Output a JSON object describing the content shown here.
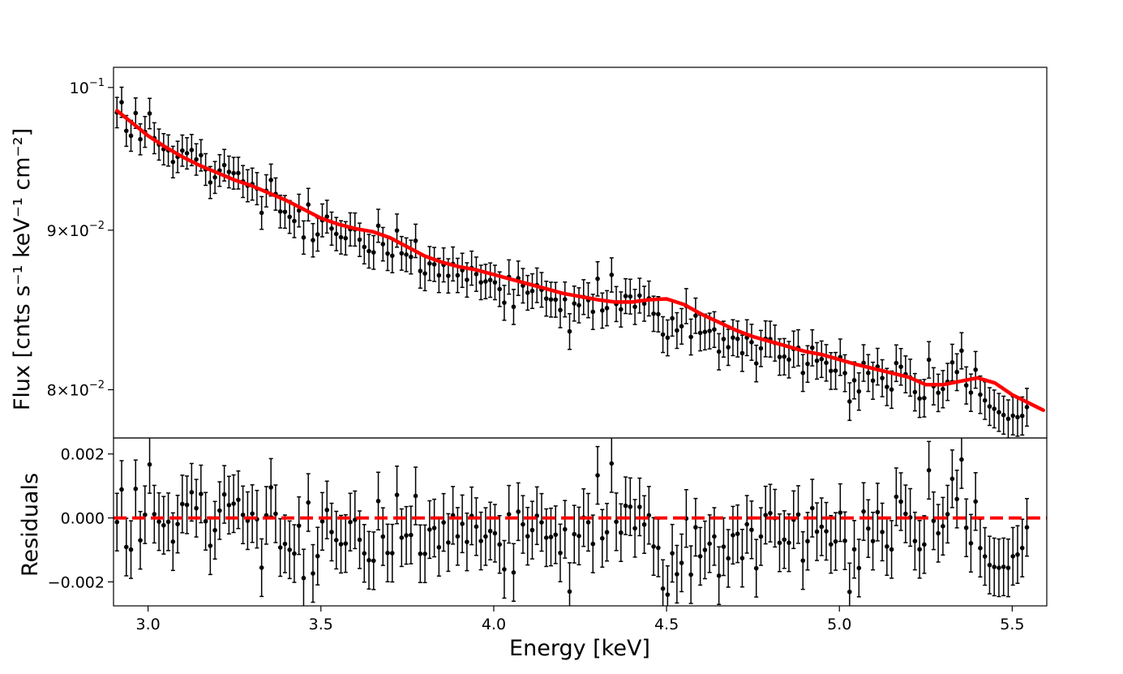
{
  "chart_data": {
    "type": "scatter",
    "panels": [
      {
        "name": "spectrum",
        "ylabel": "Flux [cnts s⁻¹ keV⁻¹ cm⁻²]",
        "yscale": "log",
        "xlim": [
          2.9,
          5.6
        ],
        "ylim": [
          0.0772,
          0.1015
        ],
        "ytick_values": [
          0.1,
          0.09,
          0.08
        ],
        "ytick_mantissa": [
          "10",
          "9×10",
          "8×10"
        ],
        "ytick_exponent": [
          "−1",
          "−2",
          "−2"
        ],
        "series": [
          {
            "name": "data",
            "kind": "errorbar",
            "color": "#000000",
            "x_start": 2.91,
            "x_step": 0.0135,
            "y": [
              0.09817,
              0.09892,
              0.09685,
              0.0965,
              0.09813,
              0.09625,
              0.09678,
              0.0981,
              0.09633,
              0.09588,
              0.09555,
              0.09546,
              0.09465,
              0.09501,
              0.09545,
              0.09526,
              0.09549,
              0.09483,
              0.09512,
              0.09413,
              0.09323,
              0.09358,
              0.09406,
              0.09443,
              0.09396,
              0.09387,
              0.09388,
              0.0933,
              0.09301,
              0.09312,
              0.09281,
              0.09116,
              0.09266,
              0.0934,
              0.09244,
              0.09125,
              0.09123,
              0.09089,
              0.09061,
              0.09132,
              0.08952,
              0.09172,
              0.08934,
              0.08972,
              0.09066,
              0.09091,
              0.09011,
              0.08975,
              0.08953,
              0.08947,
              0.09006,
              0.09005,
              0.08937,
              0.08889,
              0.08862,
              0.08854,
              0.0903,
              0.08908,
              0.08846,
              0.08832,
              0.08998,
              0.08848,
              0.08839,
              0.08824,
              0.0893,
              0.08733,
              0.08717,
              0.08782,
              0.08776,
              0.08705,
              0.08773,
              0.08702,
              0.08779,
              0.08705,
              0.08738,
              0.08676,
              0.08752,
              0.08713,
              0.0866,
              0.08666,
              0.08675,
              0.0866,
              0.08617,
              0.08531,
              0.08695,
              0.08505,
              0.08687,
              0.08639,
              0.08594,
              0.08605,
              0.08642,
              0.08613,
              0.08557,
              0.08551,
              0.0855,
              0.08485,
              0.08552,
              0.08352,
              0.08526,
              0.08515,
              0.08567,
              0.08547,
              0.08474,
              0.08683,
              0.08482,
              0.08497,
              0.08708,
              0.08523,
              0.08489,
              0.08573,
              0.0857,
              0.08505,
              0.08576,
              0.08525,
              0.08558,
              0.08462,
              0.08459,
              0.08333,
              0.08313,
              0.08433,
              0.08358,
              0.08384,
              0.0851,
              0.08318,
              0.0845,
              0.08343,
              0.08349,
              0.08355,
              0.08364,
              0.08228,
              0.08305,
              0.08255,
              0.08314,
              0.08306,
              0.08219,
              0.08314,
              0.08286,
              0.08157,
              0.08248,
              0.08307,
              0.08305,
              0.08281,
              0.08196,
              0.08198,
              0.0818,
              0.08244,
              0.08252,
              0.081,
              0.08154,
              0.08252,
              0.08173,
              0.08183,
              0.08161,
              0.08112,
              0.08113,
              0.08195,
              0.08099,
              0.07931,
              0.08056,
              0.0799,
              0.0816,
              0.081,
              0.08054,
              0.08138,
              0.08069,
              0.08017,
              0.08001,
              0.08159,
              0.08137,
              0.08092,
              0.08072,
              0.07986,
              0.07948,
              0.07951,
              0.08179,
              0.08021,
              0.07982,
              0.08004,
              0.08047,
              0.08163,
              0.08105,
              0.08234,
              0.08026,
              0.07983,
              0.08119,
              0.07971,
              0.07937,
              0.07902,
              0.07888,
              0.07868,
              0.07852,
              0.0783,
              0.07848,
              0.0784,
              0.07847,
              0.07898
            ],
            "err": 0.0011
          },
          {
            "name": "model",
            "kind": "line",
            "color": "#ff0000",
            "x": [
              2.91,
              2.95,
              3.0,
              3.05,
              3.1,
              3.15,
              3.2,
              3.25,
              3.3,
              3.35,
              3.4,
              3.45,
              3.5,
              3.55,
              3.6,
              3.65,
              3.7,
              3.75,
              3.8,
              3.85,
              3.9,
              3.95,
              4.0,
              4.05,
              4.1,
              4.15,
              4.2,
              4.25,
              4.3,
              4.35,
              4.4,
              4.45,
              4.5,
              4.55,
              4.6,
              4.65,
              4.7,
              4.75,
              4.8,
              4.85,
              4.9,
              4.95,
              5.0,
              5.05,
              5.1,
              5.15,
              5.2,
              5.25,
              5.3,
              5.35,
              5.4,
              5.45,
              5.5,
              5.55,
              5.59
            ],
            "y": [
              0.0983,
              0.0975,
              0.0965,
              0.0957,
              0.095,
              0.0944,
              0.0939,
              0.0934,
              0.093,
              0.0925,
              0.092,
              0.0914,
              0.0908,
              0.0904,
              0.0901,
              0.0899,
              0.0895,
              0.0889,
              0.0883,
              0.0879,
              0.0876,
              0.0874,
              0.0871,
              0.0868,
              0.0865,
              0.0862,
              0.0859,
              0.0857,
              0.0855,
              0.08535,
              0.08535,
              0.0855,
              0.08555,
              0.0852,
              0.0846,
              0.0841,
              0.0836,
              0.0832,
              0.0829,
              0.0826,
              0.0823,
              0.0821,
              0.0818,
              0.0815,
              0.08125,
              0.081,
              0.08075,
              0.0803,
              0.0803,
              0.0805,
              0.0807,
              0.0804,
              0.0797,
              0.0792,
              0.0788
            ]
          }
        ]
      },
      {
        "name": "residuals",
        "ylabel": "Residuals",
        "xlabel": "Energy [keV]",
        "xlim": [
          2.9,
          5.6
        ],
        "ylim": [
          -0.00275,
          0.0025
        ],
        "xticks": [
          "3.0",
          "3.5",
          "4.0",
          "4.5",
          "5.0",
          "5.5"
        ],
        "xtick_values": [
          3.0,
          3.5,
          4.0,
          4.5,
          5.0,
          5.5
        ],
        "yticks": [
          "0.002",
          "0.000",
          "−0.002"
        ],
        "ytick_values": [
          0.002,
          0.0,
          -0.002
        ],
        "series": [
          {
            "name": "residuals",
            "kind": "errorbar",
            "color": "#000000",
            "x_start": 2.91,
            "x_step": 0.0135,
            "err": 0.0009
          },
          {
            "name": "zero-line",
            "kind": "dashed-line",
            "color": "#ff0000",
            "y": 0.0
          }
        ]
      }
    ]
  }
}
